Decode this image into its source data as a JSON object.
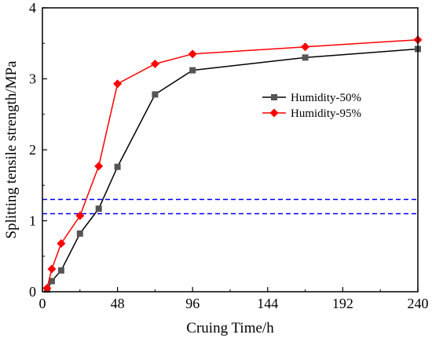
{
  "chart_data": {
    "type": "line",
    "xlabel": "Cruing Time/h",
    "ylabel": "Splitting tensile strength/MPa",
    "xlim": [
      0,
      240
    ],
    "ylim": [
      0,
      4
    ],
    "x_ticks": [
      "0",
      "48",
      "96",
      "144",
      "192",
      "240"
    ],
    "y_ticks": [
      "0",
      "1",
      "2",
      "3",
      "4"
    ],
    "grid": false,
    "legend_position": "center-right",
    "series": [
      {
        "name": "Humidity-50%",
        "color": "#000000",
        "marker_color": "#555555",
        "marker": "square",
        "points": [
          [
            3,
            0.03
          ],
          [
            6,
            0.15
          ],
          [
            12,
            0.3
          ],
          [
            24,
            0.82
          ],
          [
            36,
            1.17
          ],
          [
            48,
            1.76
          ],
          [
            72,
            2.78
          ],
          [
            96,
            3.12
          ],
          [
            168,
            3.3
          ],
          [
            240,
            3.42
          ]
        ]
      },
      {
        "name": "Humidity-95%",
        "color": "#ff0000",
        "marker_color": "#ff0000",
        "marker": "diamond",
        "points": [
          [
            3,
            0.05
          ],
          [
            6,
            0.32
          ],
          [
            12,
            0.68
          ],
          [
            24,
            1.07
          ],
          [
            36,
            1.77
          ],
          [
            48,
            2.93
          ],
          [
            72,
            3.21
          ],
          [
            96,
            3.35
          ],
          [
            168,
            3.45
          ],
          [
            240,
            3.55
          ]
        ]
      }
    ],
    "reference_lines": [
      {
        "y": 1.3,
        "color": "#0000ff",
        "style": "dashed"
      },
      {
        "y": 1.1,
        "color": "#0000ff",
        "style": "dashed"
      }
    ]
  }
}
